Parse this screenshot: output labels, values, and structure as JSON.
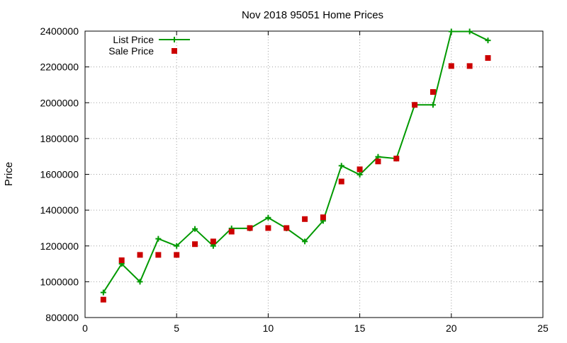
{
  "chart_data": {
    "type": "line",
    "title": "Nov 2018 95051 Home Prices",
    "xlabel": "",
    "ylabel": "Price",
    "xlim": [
      0,
      25
    ],
    "ylim": [
      800000,
      2400000
    ],
    "xticks": [
      "0",
      "5",
      "10",
      "15",
      "20",
      "25"
    ],
    "yticks": [
      "800000",
      "1000000",
      "1200000",
      "1400000",
      "1600000",
      "1800000",
      "2000000",
      "2200000",
      "2400000"
    ],
    "grid": true,
    "legend_position": "top-left",
    "series": [
      {
        "name": "List Price",
        "style": "line-with-plus-markers",
        "color": "#009900",
        "points": [
          [
            1,
            940000
          ],
          [
            2,
            1100000
          ],
          [
            3,
            1000000
          ],
          [
            4,
            1240000
          ],
          [
            5,
            1200000
          ],
          [
            6,
            1295000
          ],
          [
            7,
            1200000
          ],
          [
            8,
            1298000
          ],
          [
            9,
            1298000
          ],
          [
            10,
            1358000
          ],
          [
            11,
            1298000
          ],
          [
            12,
            1225000
          ],
          [
            13,
            1340000
          ],
          [
            14,
            1648000
          ],
          [
            15,
            1598000
          ],
          [
            16,
            1698000
          ],
          [
            17,
            1688000
          ],
          [
            18,
            1988000
          ],
          [
            19,
            1988000
          ],
          [
            20,
            2398000
          ],
          [
            21,
            2398000
          ],
          [
            22,
            2348000
          ]
        ]
      },
      {
        "name": "Sale Price",
        "style": "square-markers",
        "color": "#cc0000",
        "points": [
          [
            1,
            900000
          ],
          [
            2,
            1120000
          ],
          [
            3,
            1150000
          ],
          [
            4,
            1150000
          ],
          [
            5,
            1150000
          ],
          [
            6,
            1210000
          ],
          [
            7,
            1225000
          ],
          [
            8,
            1280000
          ],
          [
            9,
            1300000
          ],
          [
            10,
            1300000
          ],
          [
            11,
            1300000
          ],
          [
            12,
            1350000
          ],
          [
            13,
            1360000
          ],
          [
            14,
            1560000
          ],
          [
            15,
            1628000
          ],
          [
            16,
            1672000
          ],
          [
            17,
            1688000
          ],
          [
            18,
            1988000
          ],
          [
            19,
            2060000
          ],
          [
            20,
            2205000
          ],
          [
            21,
            2205000
          ],
          [
            22,
            2250000
          ]
        ]
      }
    ]
  }
}
